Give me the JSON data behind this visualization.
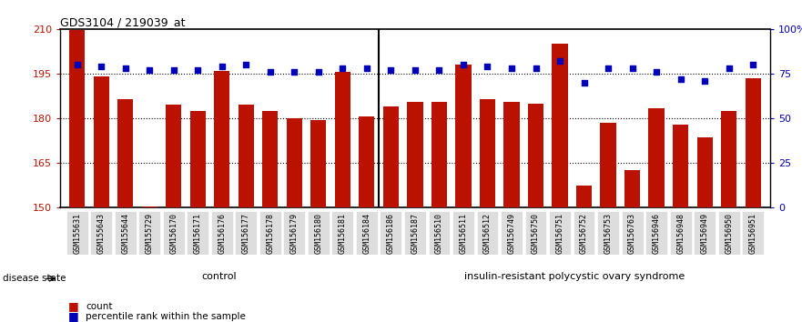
{
  "title": "GDS3104 / 219039_at",
  "samples": [
    "GSM155631",
    "GSM155643",
    "GSM155644",
    "GSM155729",
    "GSM156170",
    "GSM156171",
    "GSM156176",
    "GSM156177",
    "GSM156178",
    "GSM156179",
    "GSM156180",
    "GSM156181",
    "GSM156184",
    "GSM156186",
    "GSM156187",
    "GSM156510",
    "GSM156511",
    "GSM156512",
    "GSM156749",
    "GSM156750",
    "GSM156751",
    "GSM156752",
    "GSM156753",
    "GSM156763",
    "GSM156946",
    "GSM156948",
    "GSM156949",
    "GSM156950",
    "GSM156951"
  ],
  "bar_values": [
    209.5,
    194.0,
    186.5,
    150.5,
    184.5,
    182.5,
    196.0,
    184.5,
    182.5,
    180.0,
    179.5,
    195.5,
    180.5,
    184.0,
    185.5,
    185.5,
    198.0,
    186.5,
    185.5,
    185.0,
    205.0,
    157.5,
    178.5,
    162.5,
    183.5,
    178.0,
    173.5,
    182.5,
    193.5
  ],
  "percentile_values": [
    80,
    79,
    78,
    77,
    77,
    77,
    79,
    80,
    76,
    76,
    76,
    78,
    78,
    77,
    77,
    77,
    80,
    79,
    78,
    78,
    82,
    70,
    78,
    78,
    76,
    72,
    71,
    78,
    80
  ],
  "control_count": 13,
  "group_labels": [
    "control",
    "insulin-resistant polycystic ovary syndrome"
  ],
  "group_colors_light": "#ccffcc",
  "group_colors_dark": "#44bb44",
  "ylim_left": [
    150,
    210
  ],
  "ylim_right": [
    0,
    100
  ],
  "yticks_left": [
    150,
    165,
    180,
    195,
    210
  ],
  "yticks_right": [
    0,
    25,
    50,
    75,
    100
  ],
  "ytick_labels_left": [
    "150",
    "165",
    "180",
    "195",
    "210"
  ],
  "ytick_labels_right": [
    "0",
    "25",
    "50",
    "75",
    "100%"
  ],
  "bar_color": "#BB1100",
  "dot_color": "#0000BB",
  "background_color": "#ffffff",
  "xtick_bg": "#dddddd",
  "label_count": "count",
  "label_percentile": "percentile rank within the sample",
  "disease_state_label": "disease state"
}
